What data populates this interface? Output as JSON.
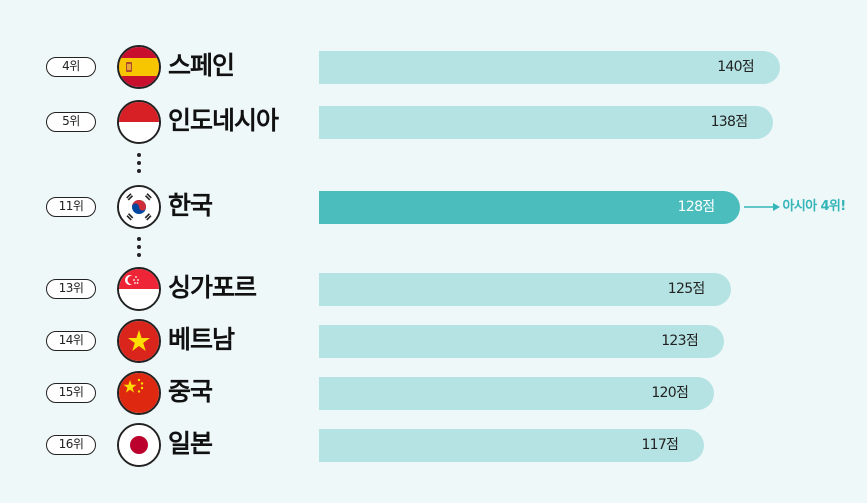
{
  "chart_data": {
    "type": "bar",
    "orientation": "horizontal",
    "categories": [
      "스페인",
      "인도네시아",
      "한국",
      "싱가포르",
      "베트남",
      "중국",
      "일본"
    ],
    "ranks": [
      "4위",
      "5위",
      "11위",
      "13위",
      "14위",
      "15위",
      "16위"
    ],
    "values": [
      140,
      138,
      128,
      125,
      123,
      120,
      117
    ],
    "value_labels": [
      "140점",
      "138점",
      "128점",
      "125점",
      "123점",
      "120점",
      "117점"
    ],
    "highlight_index": 2,
    "annotation": "아시아 4위!",
    "xlim": [
      0,
      140
    ],
    "grid": false,
    "title": "",
    "xlabel": "",
    "ylabel": ""
  },
  "flags": [
    "spain-flag-icon",
    "indonesia-flag-icon",
    "korea-flag-icon",
    "singapore-flag-icon",
    "vietnam-flag-icon",
    "china-flag-icon",
    "japan-flag-icon"
  ],
  "colors": {
    "background": "#eff8f9",
    "bar": "#b5e3e3",
    "bar_highlight": "#4bbdbd",
    "annotation": "#34b5b8"
  }
}
